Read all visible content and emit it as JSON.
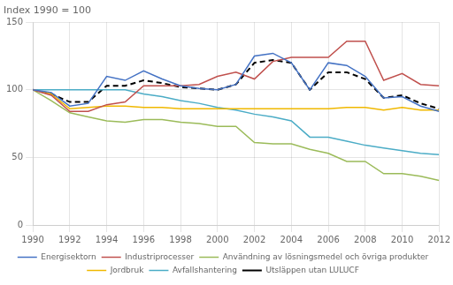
{
  "chart_data": {
    "type": "line",
    "title": "Index 1990 = 100",
    "x": [
      1990,
      1991,
      1992,
      1993,
      1994,
      1995,
      1996,
      1997,
      1998,
      1999,
      2000,
      2001,
      2002,
      2003,
      2004,
      2005,
      2006,
      2007,
      2008,
      2009,
      2010,
      2011,
      2012
    ],
    "series": [
      {
        "name": "Energisektorn",
        "color": "#4472C4",
        "values": [
          100,
          98,
          88,
          90,
          110,
          107,
          114,
          108,
          103,
          101,
          100,
          104,
          125,
          127,
          120,
          100,
          120,
          118,
          110,
          94,
          95,
          88,
          84
        ]
      },
      {
        "name": "Industriprocesser",
        "color": "#C0504D",
        "values": [
          100,
          96,
          84,
          84,
          89,
          91,
          103,
          103,
          103,
          104,
          110,
          113,
          108,
          121,
          124,
          124,
          124,
          136,
          136,
          107,
          112,
          104,
          103
        ]
      },
      {
        "name": "Användning av lösningsmedel och övriga produkter",
        "color": "#9BBB59",
        "values": [
          100,
          92,
          83,
          80,
          77,
          76,
          78,
          78,
          76,
          75,
          73,
          73,
          61,
          60,
          60,
          56,
          53,
          47,
          47,
          38,
          38,
          36,
          33
        ]
      },
      {
        "name": "Jordbruk",
        "color": "#F0B800",
        "values": [
          100,
          97,
          86,
          87,
          88,
          88,
          87,
          87,
          86,
          86,
          86,
          86,
          86,
          86,
          86,
          86,
          86,
          87,
          87,
          85,
          87,
          85,
          85
        ]
      },
      {
        "name": "Avfallshantering",
        "color": "#4BACC6",
        "values": [
          100,
          100,
          100,
          100,
          100,
          100,
          97,
          95,
          92,
          90,
          87,
          85,
          82,
          80,
          77,
          65,
          65,
          62,
          59,
          57,
          55,
          53,
          52
        ]
      },
      {
        "name": "Utsläppen utan LULUCF",
        "color": "#000000",
        "line_style": "dashed",
        "values": [
          100,
          97,
          91,
          91,
          103,
          103,
          107,
          105,
          102,
          101,
          100,
          104,
          120,
          122,
          120,
          100,
          113,
          113,
          108,
          94,
          96,
          90,
          86
        ]
      }
    ],
    "xlim": [
      1990,
      2012
    ],
    "xticks": [
      1990,
      1992,
      1994,
      1996,
      1998,
      2000,
      2002,
      2004,
      2006,
      2008,
      2010,
      2012
    ],
    "ylim": [
      0,
      150
    ],
    "yticks": [
      0,
      50,
      100,
      150
    ],
    "grid": true,
    "legend": "bottom"
  }
}
